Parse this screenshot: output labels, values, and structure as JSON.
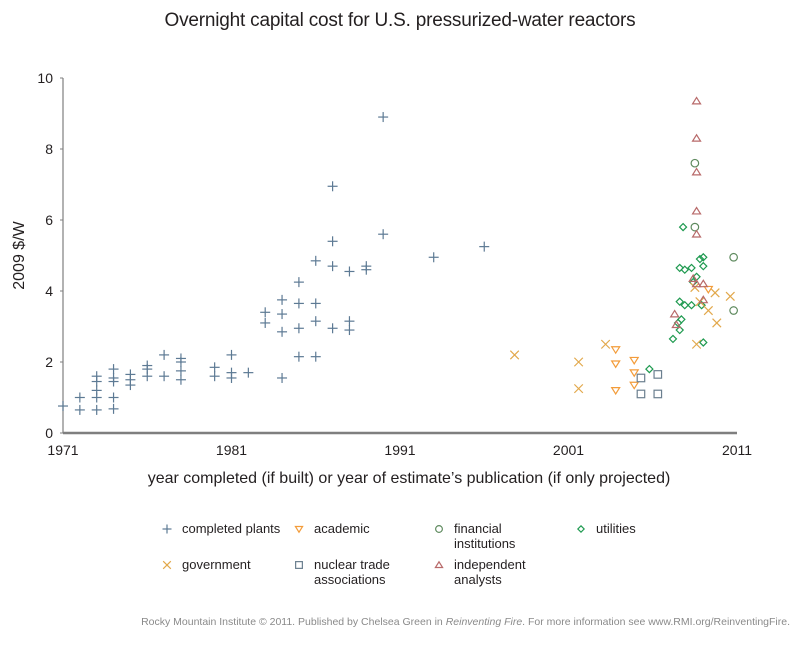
{
  "chart_data": {
    "type": "scatter",
    "title": "Overnight capital cost for U.S. pressurized-water reactors",
    "xlabel": "year completed (if built) or year of estimate’s publication (if only projected)",
    "ylabel": "2009 $/W",
    "xlim": [
      1971,
      2011
    ],
    "ylim": [
      0,
      10
    ],
    "xticks": [
      1971,
      1981,
      1991,
      2001,
      2011
    ],
    "yticks": [
      0,
      2,
      4,
      6,
      8,
      10
    ],
    "grid": false,
    "legend_position": "bottom",
    "series": [
      {
        "name": "completed plants",
        "marker": "plus",
        "color": "#5d7a94",
        "points": [
          [
            1971.0,
            0.76
          ],
          [
            1972.0,
            1.0
          ],
          [
            1972.0,
            0.65
          ],
          [
            1973.0,
            1.6
          ],
          [
            1973.0,
            1.45
          ],
          [
            1973.0,
            1.2
          ],
          [
            1973.0,
            1.0
          ],
          [
            1973.0,
            0.65
          ],
          [
            1974.0,
            1.8
          ],
          [
            1974.0,
            1.55
          ],
          [
            1974.0,
            1.45
          ],
          [
            1974.0,
            1.0
          ],
          [
            1974.0,
            0.68
          ],
          [
            1975.0,
            1.65
          ],
          [
            1975.0,
            1.5
          ],
          [
            1975.0,
            1.35
          ],
          [
            1976.0,
            1.9
          ],
          [
            1976.0,
            1.8
          ],
          [
            1976.0,
            1.6
          ],
          [
            1977.0,
            2.2
          ],
          [
            1977.0,
            1.6
          ],
          [
            1978.0,
            2.1
          ],
          [
            1978.0,
            2.0
          ],
          [
            1978.0,
            1.75
          ],
          [
            1978.0,
            1.5
          ],
          [
            1980.0,
            1.85
          ],
          [
            1980.0,
            1.6
          ],
          [
            1981.0,
            2.2
          ],
          [
            1981.0,
            1.7
          ],
          [
            1981.0,
            1.55
          ],
          [
            1982.0,
            1.7
          ],
          [
            1983.0,
            3.4
          ],
          [
            1983.0,
            3.1
          ],
          [
            1984.0,
            3.75
          ],
          [
            1984.0,
            3.35
          ],
          [
            1984.0,
            2.85
          ],
          [
            1984.0,
            1.55
          ],
          [
            1985.0,
            4.25
          ],
          [
            1985.0,
            3.65
          ],
          [
            1985.0,
            2.95
          ],
          [
            1985.0,
            2.15
          ],
          [
            1986.0,
            4.85
          ],
          [
            1986.0,
            3.65
          ],
          [
            1986.0,
            3.15
          ],
          [
            1986.0,
            2.15
          ],
          [
            1987.0,
            6.95
          ],
          [
            1987.0,
            5.4
          ],
          [
            1987.0,
            4.7
          ],
          [
            1987.0,
            2.95
          ],
          [
            1988.0,
            4.55
          ],
          [
            1988.0,
            3.15
          ],
          [
            1988.0,
            2.9
          ],
          [
            1989.0,
            4.7
          ],
          [
            1989.0,
            4.6
          ],
          [
            1990.0,
            8.9
          ],
          [
            1990.0,
            5.6
          ],
          [
            1993.0,
            4.95
          ],
          [
            1996.0,
            5.25
          ]
        ]
      },
      {
        "name": "academic",
        "marker": "triangle-down",
        "color": "#f39c3a",
        "points": [
          [
            2003.8,
            2.35
          ],
          [
            2003.8,
            1.95
          ],
          [
            2003.8,
            1.2
          ],
          [
            2004.9,
            2.05
          ],
          [
            2004.9,
            1.7
          ],
          [
            2004.9,
            1.35
          ],
          [
            2009.3,
            4.05
          ]
        ]
      },
      {
        "name": "financial institutions",
        "marker": "circle",
        "color": "#5e8a5e",
        "points": [
          [
            2008.5,
            7.6
          ],
          [
            2008.5,
            5.8
          ],
          [
            2010.8,
            4.95
          ],
          [
            2010.8,
            3.45
          ]
        ]
      },
      {
        "name": "utilities",
        "marker": "diamond",
        "color": "#1f9a50",
        "points": [
          [
            2005.8,
            1.8
          ],
          [
            2007.8,
            5.8
          ],
          [
            2007.6,
            4.65
          ],
          [
            2007.9,
            4.6
          ],
          [
            2008.3,
            4.65
          ],
          [
            2008.6,
            4.4
          ],
          [
            2008.4,
            4.25
          ],
          [
            2008.8,
            4.9
          ],
          [
            2009.0,
            4.95
          ],
          [
            2009.0,
            4.7
          ],
          [
            2007.6,
            3.7
          ],
          [
            2007.9,
            3.6
          ],
          [
            2008.3,
            3.6
          ],
          [
            2008.9,
            3.6
          ],
          [
            2007.7,
            3.2
          ],
          [
            2007.5,
            3.1
          ],
          [
            2007.6,
            2.9
          ],
          [
            2007.2,
            2.65
          ],
          [
            2009.0,
            2.55
          ]
        ]
      },
      {
        "name": "government",
        "marker": "x",
        "color": "#e2a84b",
        "points": [
          [
            1997.8,
            2.2
          ],
          [
            2001.6,
            2.0
          ],
          [
            2001.6,
            1.25
          ],
          [
            2003.2,
            2.5
          ],
          [
            2008.5,
            4.1
          ],
          [
            2009.7,
            3.95
          ],
          [
            2010.6,
            3.85
          ],
          [
            2008.8,
            3.7
          ],
          [
            2009.3,
            3.45
          ],
          [
            2009.8,
            3.1
          ],
          [
            2008.6,
            2.5
          ]
        ]
      },
      {
        "name": "nuclear trade associations",
        "marker": "square",
        "color": "#6b7f8f",
        "points": [
          [
            2005.3,
            1.55
          ],
          [
            2006.3,
            1.65
          ],
          [
            2005.3,
            1.1
          ],
          [
            2006.3,
            1.1
          ]
        ]
      },
      {
        "name": "independent analysts",
        "marker": "triangle-up",
        "color": "#b86a6a",
        "points": [
          [
            2008.6,
            9.35
          ],
          [
            2008.6,
            8.3
          ],
          [
            2008.6,
            7.35
          ],
          [
            2008.6,
            6.25
          ],
          [
            2008.6,
            5.6
          ],
          [
            2008.4,
            4.35
          ],
          [
            2008.6,
            4.2
          ],
          [
            2009.0,
            4.2
          ],
          [
            2009.0,
            3.75
          ],
          [
            2007.3,
            3.35
          ],
          [
            2007.4,
            3.05
          ]
        ]
      }
    ]
  },
  "legend": [
    {
      "label": "completed plants",
      "marker": "plus",
      "color": "#5d7a94"
    },
    {
      "label": "academic",
      "marker": "triangle-down",
      "color": "#f39c3a"
    },
    {
      "label": "financial\ninstitutions",
      "marker": "circle",
      "color": "#5e8a5e"
    },
    {
      "label": "utilities",
      "marker": "diamond",
      "color": "#1f9a50"
    },
    {
      "label": "government",
      "marker": "x",
      "color": "#e2a84b"
    },
    {
      "label": "nuclear trade\nassociations",
      "marker": "square",
      "color": "#6b7f8f"
    },
    {
      "label": "independent\nanalysts",
      "marker": "triangle-up",
      "color": "#b86a6a"
    }
  ],
  "footer": {
    "prefix": "Rocky Mountain Institute © 2011. Published by Chelsea Green in ",
    "book": "Reinventing Fire",
    "suffix": ". For more information see www.RMI.org/ReinventingFire."
  },
  "colors": {
    "axis": "#7f7f7f",
    "text": "#231f20",
    "footer": "#8a8a8a"
  }
}
